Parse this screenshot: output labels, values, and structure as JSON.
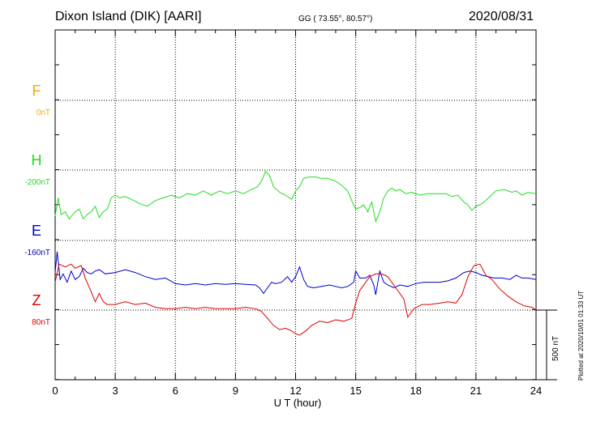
{
  "header": {
    "station": "Dixon Island (DIK)  [AARI]",
    "coords": "GG ( 73.55°,  80.57°)",
    "date": "2020/08/31"
  },
  "footer": {
    "plotted": "Plotted at 2020/10/01 01:33 UT",
    "scale_label": "500 nT"
  },
  "chart_data": {
    "type": "line",
    "xlabel": "U T (hour)",
    "xlim": [
      0,
      24
    ],
    "xticks": [
      "0",
      "3",
      "6",
      "9",
      "12",
      "15",
      "18",
      "21",
      "24"
    ],
    "scale_bar_nT": 500,
    "series": [
      {
        "name": "F",
        "baseline_label": "0nT",
        "color": "#ffa500",
        "points": []
      },
      {
        "name": "H",
        "baseline_label": "-200nT",
        "color": "#22dd22",
        "points": [
          [
            0,
            -330
          ],
          [
            0.15,
            -200
          ],
          [
            0.3,
            -320
          ],
          [
            0.5,
            -300
          ],
          [
            0.7,
            -350
          ],
          [
            1.0,
            -300
          ],
          [
            1.2,
            -280
          ],
          [
            1.4,
            -350
          ],
          [
            1.6,
            -320
          ],
          [
            1.8,
            -300
          ],
          [
            2.0,
            -260
          ],
          [
            2.2,
            -340
          ],
          [
            2.4,
            -300
          ],
          [
            2.6,
            -280
          ],
          [
            2.8,
            -200
          ],
          [
            3.0,
            -180
          ],
          [
            3.2,
            -200
          ],
          [
            3.5,
            -190
          ],
          [
            3.8,
            -210
          ],
          [
            4.2,
            -240
          ],
          [
            4.6,
            -260
          ],
          [
            5.0,
            -220
          ],
          [
            5.4,
            -200
          ],
          [
            5.8,
            -180
          ],
          [
            6.2,
            -200
          ],
          [
            6.6,
            -170
          ],
          [
            7.0,
            -180
          ],
          [
            7.4,
            -150
          ],
          [
            7.8,
            -180
          ],
          [
            8.2,
            -150
          ],
          [
            8.6,
            -170
          ],
          [
            9.0,
            -150
          ],
          [
            9.4,
            -170
          ],
          [
            9.8,
            -140
          ],
          [
            10.1,
            -120
          ],
          [
            10.3,
            -80
          ],
          [
            10.5,
            -10
          ],
          [
            10.7,
            -40
          ],
          [
            10.9,
            -120
          ],
          [
            11.2,
            -160
          ],
          [
            11.5,
            -180
          ],
          [
            11.8,
            -210
          ],
          [
            12.0,
            -150
          ],
          [
            12.2,
            -120
          ],
          [
            12.4,
            -60
          ],
          [
            12.7,
            -50
          ],
          [
            13.0,
            -50
          ],
          [
            13.3,
            -60
          ],
          [
            13.6,
            -60
          ],
          [
            14.0,
            -80
          ],
          [
            14.3,
            -110
          ],
          [
            14.6,
            -150
          ],
          [
            14.8,
            -220
          ],
          [
            15.0,
            -280
          ],
          [
            15.2,
            -270
          ],
          [
            15.4,
            -250
          ],
          [
            15.6,
            -300
          ],
          [
            15.8,
            -230
          ],
          [
            16.0,
            -370
          ],
          [
            16.2,
            -300
          ],
          [
            16.4,
            -200
          ],
          [
            16.6,
            -150
          ],
          [
            16.8,
            -130
          ],
          [
            17.0,
            -150
          ],
          [
            17.2,
            -140
          ],
          [
            17.5,
            -170
          ],
          [
            17.8,
            -160
          ],
          [
            18.2,
            -180
          ],
          [
            18.6,
            -170
          ],
          [
            19.0,
            -170
          ],
          [
            19.5,
            -170
          ],
          [
            19.8,
            -190
          ],
          [
            20.1,
            -180
          ],
          [
            20.4,
            -230
          ],
          [
            20.6,
            -250
          ],
          [
            20.8,
            -290
          ],
          [
            21.0,
            -260
          ],
          [
            21.2,
            -250
          ],
          [
            21.4,
            -230
          ],
          [
            21.7,
            -190
          ],
          [
            22.0,
            -150
          ],
          [
            22.4,
            -140
          ],
          [
            22.8,
            -160
          ],
          [
            23.0,
            -150
          ],
          [
            23.3,
            -180
          ],
          [
            23.6,
            -160
          ],
          [
            24.0,
            -170
          ]
        ]
      },
      {
        "name": "E",
        "baseline_label": "-160nT",
        "color": "#0000cc",
        "points": [
          [
            0,
            -230
          ],
          [
            0.1,
            -80
          ],
          [
            0.25,
            -280
          ],
          [
            0.4,
            -240
          ],
          [
            0.6,
            -300
          ],
          [
            0.8,
            -220
          ],
          [
            1.0,
            -280
          ],
          [
            1.2,
            -260
          ],
          [
            1.4,
            -200
          ],
          [
            1.6,
            -230
          ],
          [
            1.8,
            -240
          ],
          [
            2.0,
            -220
          ],
          [
            2.2,
            -210
          ],
          [
            2.5,
            -240
          ],
          [
            3.0,
            -230
          ],
          [
            3.5,
            -210
          ],
          [
            4.0,
            -230
          ],
          [
            4.5,
            -260
          ],
          [
            5.0,
            -280
          ],
          [
            5.5,
            -270
          ],
          [
            6.0,
            -310
          ],
          [
            6.5,
            -320
          ],
          [
            7.0,
            -310
          ],
          [
            7.5,
            -320
          ],
          [
            8.0,
            -310
          ],
          [
            8.5,
            -315
          ],
          [
            9.0,
            -310
          ],
          [
            9.5,
            -315
          ],
          [
            10.0,
            -320
          ],
          [
            10.2,
            -340
          ],
          [
            10.4,
            -380
          ],
          [
            10.6,
            -340
          ],
          [
            10.8,
            -300
          ],
          [
            11.0,
            -310
          ],
          [
            11.3,
            -300
          ],
          [
            11.6,
            -260
          ],
          [
            11.8,
            -300
          ],
          [
            12.0,
            -260
          ],
          [
            12.2,
            -190
          ],
          [
            12.4,
            -280
          ],
          [
            12.6,
            -330
          ],
          [
            12.9,
            -340
          ],
          [
            13.3,
            -330
          ],
          [
            13.7,
            -320
          ],
          [
            14.0,
            -330
          ],
          [
            14.3,
            -340
          ],
          [
            14.6,
            -330
          ],
          [
            14.9,
            -300
          ],
          [
            15.0,
            -220
          ],
          [
            15.2,
            -270
          ],
          [
            15.5,
            -270
          ],
          [
            15.7,
            -250
          ],
          [
            15.9,
            -320
          ],
          [
            16.0,
            -390
          ],
          [
            16.2,
            -220
          ],
          [
            16.4,
            -300
          ],
          [
            16.6,
            -320
          ],
          [
            16.9,
            -340
          ],
          [
            17.2,
            -320
          ],
          [
            17.6,
            -330
          ],
          [
            18.0,
            -310
          ],
          [
            18.4,
            -300
          ],
          [
            18.8,
            -300
          ],
          [
            19.2,
            -300
          ],
          [
            19.6,
            -290
          ],
          [
            20.0,
            -270
          ],
          [
            20.4,
            -230
          ],
          [
            20.7,
            -220
          ],
          [
            21.0,
            -230
          ],
          [
            21.3,
            -250
          ],
          [
            21.6,
            -260
          ],
          [
            21.9,
            -270
          ],
          [
            22.3,
            -270
          ],
          [
            22.7,
            -280
          ],
          [
            23.0,
            -250
          ],
          [
            23.3,
            -270
          ],
          [
            23.6,
            -270
          ],
          [
            24.0,
            -280
          ]
        ]
      },
      {
        "name": "Z",
        "baseline_label": "80nT",
        "color": "#dd0000",
        "points": [
          [
            0,
            200
          ],
          [
            0.2,
            330
          ],
          [
            0.5,
            310
          ],
          [
            0.8,
            330
          ],
          [
            1.0,
            300
          ],
          [
            1.3,
            320
          ],
          [
            1.5,
            230
          ],
          [
            1.8,
            130
          ],
          [
            2.0,
            60
          ],
          [
            2.2,
            120
          ],
          [
            2.4,
            60
          ],
          [
            2.6,
            40
          ],
          [
            3.0,
            40
          ],
          [
            3.5,
            60
          ],
          [
            4.0,
            40
          ],
          [
            4.5,
            50
          ],
          [
            5.0,
            20
          ],
          [
            5.5,
            10
          ],
          [
            6.0,
            10
          ],
          [
            6.5,
            20
          ],
          [
            7.0,
            10
          ],
          [
            7.5,
            20
          ],
          [
            8.0,
            10
          ],
          [
            8.5,
            10
          ],
          [
            9.0,
            10
          ],
          [
            9.5,
            20
          ],
          [
            10.0,
            10
          ],
          [
            10.3,
            -10
          ],
          [
            10.6,
            -60
          ],
          [
            10.9,
            -110
          ],
          [
            11.2,
            -140
          ],
          [
            11.5,
            -130
          ],
          [
            11.8,
            -150
          ],
          [
            12.0,
            -170
          ],
          [
            12.2,
            -180
          ],
          [
            12.5,
            -150
          ],
          [
            12.8,
            -110
          ],
          [
            13.2,
            -80
          ],
          [
            13.6,
            -90
          ],
          [
            14.0,
            -70
          ],
          [
            14.4,
            -80
          ],
          [
            14.8,
            -60
          ],
          [
            15.0,
            50
          ],
          [
            15.2,
            140
          ],
          [
            15.5,
            200
          ],
          [
            15.7,
            240
          ],
          [
            16.0,
            260
          ],
          [
            16.3,
            260
          ],
          [
            16.6,
            240
          ],
          [
            17.0,
            160
          ],
          [
            17.4,
            80
          ],
          [
            17.6,
            -50
          ],
          [
            17.9,
            10
          ],
          [
            18.3,
            40
          ],
          [
            18.7,
            40
          ],
          [
            19.2,
            50
          ],
          [
            19.6,
            60
          ],
          [
            20.0,
            50
          ],
          [
            20.3,
            110
          ],
          [
            20.6,
            240
          ],
          [
            20.9,
            320
          ],
          [
            21.2,
            330
          ],
          [
            21.5,
            250
          ],
          [
            21.8,
            220
          ],
          [
            22.2,
            150
          ],
          [
            22.6,
            100
          ],
          [
            23.0,
            60
          ],
          [
            23.4,
            30
          ],
          [
            23.8,
            20
          ],
          [
            24.0,
            0
          ]
        ]
      }
    ]
  }
}
